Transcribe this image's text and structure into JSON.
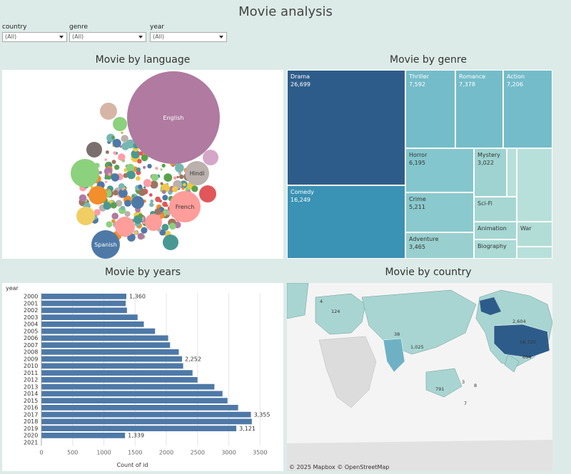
{
  "title": "Movie analysis",
  "filters": [
    {
      "label": "country",
      "value": "(All)"
    },
    {
      "label": "genre",
      "value": "(All)"
    },
    {
      "label": "year",
      "value": "(All)"
    }
  ],
  "panels": {
    "language": "Movie by language",
    "genre": "Movie by genre",
    "years": "Movie by years",
    "country": "Movie by country"
  },
  "language_bubbles": {
    "labels": [
      "English",
      "Hindi",
      "French",
      "Spanish"
    ]
  },
  "genre_treemap": [
    {
      "name": "Drama",
      "value": "26,699",
      "color": "#2e5c8a"
    },
    {
      "name": "Comedy",
      "value": "16,249",
      "color": "#3a92b4"
    },
    {
      "name": "Thriller",
      "value": "7,592",
      "color": "#74bcc9"
    },
    {
      "name": "Romance",
      "value": "7,378",
      "color": "#74bcc9"
    },
    {
      "name": "Action",
      "value": "7,206",
      "color": "#74bcc9"
    },
    {
      "name": "Horror",
      "value": "6,195",
      "color": "#84c6cd"
    },
    {
      "name": "Mystery",
      "value": "3,022",
      "color": "#9fd3d1"
    },
    {
      "name": "Crime",
      "value": "5,211",
      "color": "#8ac9cd"
    },
    {
      "name": "Sci-Fi",
      "value": "",
      "color": "#a6d7d3"
    },
    {
      "name": "Animation",
      "value": "",
      "color": "#a6d7d3"
    },
    {
      "name": "Adventure",
      "value": "3,465",
      "color": "#99d0cf"
    },
    {
      "name": "Biography",
      "value": "",
      "color": "#acdad5"
    },
    {
      "name": "War",
      "value": "",
      "color": "#b2ddd7"
    }
  ],
  "chart_data": {
    "type": "bar",
    "orientation": "horizontal",
    "ylabel": "year",
    "xlabel": "Count of id",
    "xlim": [
      0,
      3600
    ],
    "xticks": [
      0,
      500,
      1000,
      1500,
      2000,
      2500,
      3000,
      3500
    ],
    "categories": [
      "2000",
      "2001",
      "2002",
      "2003",
      "2004",
      "2005",
      "2006",
      "2007",
      "2008",
      "2009",
      "2010",
      "2011",
      "2012",
      "2013",
      "2014",
      "2015",
      "2016",
      "2017",
      "2018",
      "2019",
      "2020",
      "2021"
    ],
    "values": [
      1360,
      1350,
      1370,
      1540,
      1640,
      1820,
      2030,
      2060,
      2200,
      2252,
      2270,
      2420,
      2500,
      2770,
      2900,
      2980,
      3150,
      3355,
      3370,
      3121,
      1339,
      0
    ],
    "labels": {
      "2000": "1,360",
      "2009": "2,252",
      "2017": "3,355",
      "2019": "3,121",
      "2020": "1,339"
    },
    "bar_color": "#4e79a7"
  },
  "map": {
    "labels": [
      "4",
      "124",
      "2,604",
      "16,725",
      "38",
      "1,025",
      "791",
      "694",
      "3",
      "8",
      "7"
    ],
    "attribution": "© 2025 Mapbox  © OpenStreetMap"
  }
}
